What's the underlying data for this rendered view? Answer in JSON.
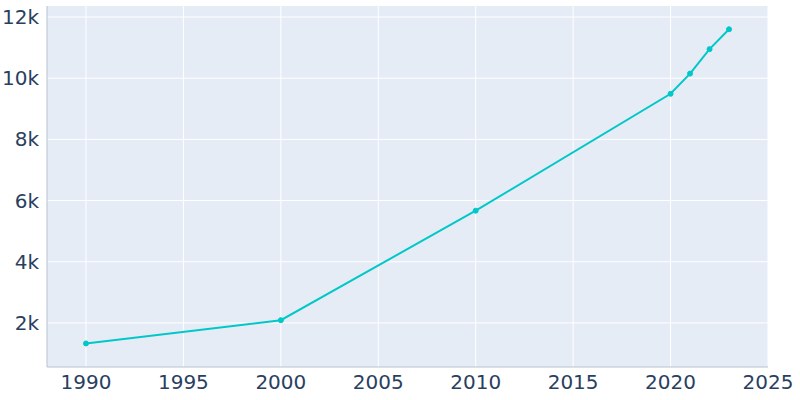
{
  "chart_data": {
    "type": "line",
    "x": [
      1990,
      2000,
      2010,
      2020,
      2021,
      2022,
      2023
    ],
    "values": [
      1330,
      2090,
      5670,
      9490,
      10150,
      10950,
      11600
    ],
    "color": "#00c8c8",
    "marker": "circle",
    "xlim": [
      1988,
      2025
    ],
    "xticks": [
      1990,
      1995,
      2000,
      2005,
      2010,
      2015,
      2020,
      2025
    ],
    "ylim": [
      560,
      12360
    ],
    "yticks": [
      {
        "value": 2000,
        "label": "2k"
      },
      {
        "value": 4000,
        "label": "4k"
      },
      {
        "value": 6000,
        "label": "6k"
      },
      {
        "value": 8000,
        "label": "8k"
      },
      {
        "value": 10000,
        "label": "10k"
      },
      {
        "value": 12000,
        "label": "12k"
      }
    ],
    "grid": true
  }
}
